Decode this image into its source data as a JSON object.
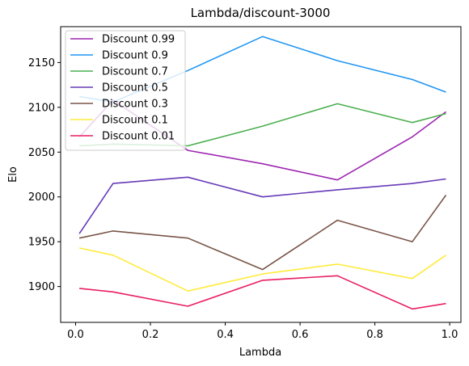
{
  "chart_data": {
    "type": "line",
    "title": "Lambda/discount-3000",
    "xlabel": "Lambda",
    "ylabel": "Elo",
    "xlim": [
      -0.04,
      1.03
    ],
    "ylim": [
      1860,
      2190
    ],
    "xticks": [
      0.0,
      0.2,
      0.4,
      0.6,
      0.8,
      1.0
    ],
    "xtick_labels": [
      "0.0",
      "0.2",
      "0.4",
      "0.6",
      "0.8",
      "1.0"
    ],
    "yticks": [
      1900,
      1950,
      2000,
      2050,
      2100,
      2150
    ],
    "ytick_labels": [
      "1900",
      "1950",
      "2000",
      "2050",
      "2100",
      "2150"
    ],
    "grid": false,
    "legend_position": "top-left",
    "x": [
      0.01,
      0.1,
      0.3,
      0.5,
      0.7,
      0.9,
      0.99
    ],
    "series": [
      {
        "name": "Discount 0.99",
        "color": "#9c27b0",
        "values": [
          2067,
          2108,
          2052,
          2037,
          2019,
          2067,
          2095
        ]
      },
      {
        "name": "Discount 0.9",
        "color": "#2196f3",
        "values": [
          2112,
          2106,
          2141,
          2179,
          2152,
          2131,
          2117
        ]
      },
      {
        "name": "Discount 0.7",
        "color": "#4caf50",
        "values": [
          2057,
          2059,
          2057,
          2079,
          2104,
          2083,
          2093
        ]
      },
      {
        "name": "Discount 0.5",
        "color": "#673ab7",
        "values": [
          1959,
          2015,
          2022,
          2000,
          2008,
          2015,
          2020
        ]
      },
      {
        "name": "Discount 0.3",
        "color": "#795548",
        "values": [
          1954,
          1962,
          1954,
          1919,
          1974,
          1950,
          2002
        ]
      },
      {
        "name": "Discount 0.1",
        "color": "#ffeb3b",
        "values": [
          1943,
          1935,
          1895,
          1914,
          1925,
          1909,
          1935
        ]
      },
      {
        "name": "Discount 0.01",
        "color": "#e91e63",
        "values": [
          1898,
          1894,
          1878,
          1907,
          1912,
          1875,
          1881
        ]
      }
    ]
  }
}
